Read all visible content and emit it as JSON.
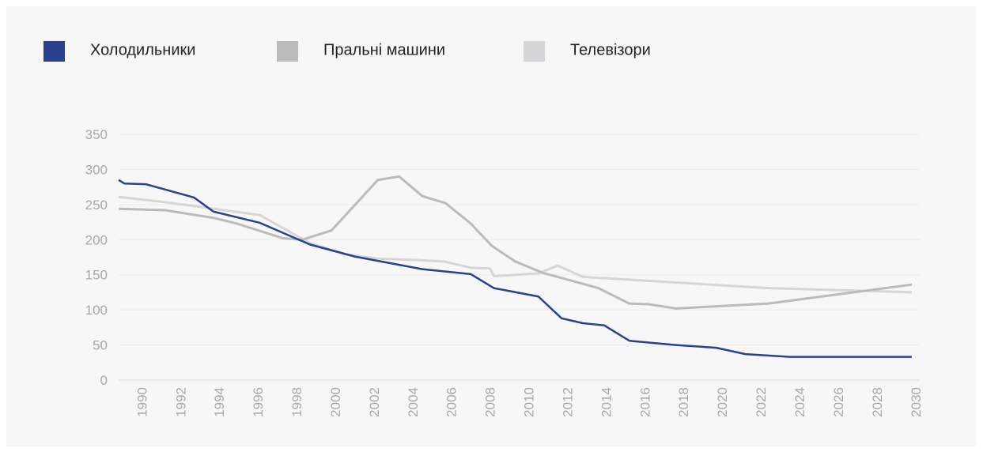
{
  "chart_data": {
    "type": "line",
    "legend": "top-left",
    "grid": true,
    "xlim": [
      1988.8,
      2030.5
    ],
    "ylim": [
      0,
      350
    ],
    "xticks": [
      1990,
      1992,
      1994,
      1996,
      1998,
      2000,
      2002,
      2004,
      2006,
      2008,
      2010,
      2012,
      2014,
      2016,
      2018,
      2020,
      2022,
      2024,
      2026,
      2028,
      2030
    ],
    "yticks": [
      0,
      50,
      100,
      150,
      200,
      250,
      300,
      350
    ],
    "series": [
      {
        "name": "Холодильники",
        "color": "#2a4190",
        "width": 2.5,
        "x": [
          1988.8,
          1989.1,
          1990.2,
          1992.7,
          1993.7,
          1996.1,
          1998.7,
          2001,
          2004.5,
          2007,
          2008.2,
          2010.5,
          2011.7,
          2012.8,
          2013.9,
          2015.2,
          2017.6,
          2019.7,
          2021.2,
          2023.5,
          2029.8
        ],
        "values": [
          285,
          280,
          279,
          260,
          240,
          224,
          193,
          176,
          158,
          151,
          131,
          119,
          88,
          81,
          78,
          56,
          50,
          46,
          37,
          33,
          33
        ]
      },
      {
        "name": "Пральні машини",
        "color": "#bbbbbb",
        "width": 3,
        "x": [
          1988.8,
          1991.2,
          1993.7,
          1994.9,
          1997.3,
          1998.3,
          1999.8,
          2002.2,
          2003.3,
          2004.5,
          2005.7,
          2007,
          2008.1,
          2009.3,
          2010.7,
          2013.6,
          2015.2,
          2016.2,
          2017.6,
          2022.4,
          2029.8
        ],
        "values": [
          244,
          242,
          231,
          223,
          202,
          200,
          213,
          285,
          290,
          262,
          252,
          223,
          191,
          169,
          153,
          131,
          109,
          108,
          102,
          109,
          136
        ]
      },
      {
        "name": "Телевізори",
        "color": "#d5d6d8",
        "width": 3,
        "x": [
          1988.8,
          1991,
          1992.4,
          1996.1,
          1997.2,
          1998.7,
          2000.6,
          2002.2,
          2004.2,
          2005.6,
          2007,
          2008,
          2008.2,
          2010.5,
          2011.5,
          2012.8,
          2022.4,
          2029.8
        ],
        "values": [
          261,
          254,
          249,
          235,
          218,
          195,
          179,
          173,
          171,
          169,
          160,
          159,
          148,
          152,
          163,
          147,
          131,
          125
        ]
      }
    ]
  }
}
